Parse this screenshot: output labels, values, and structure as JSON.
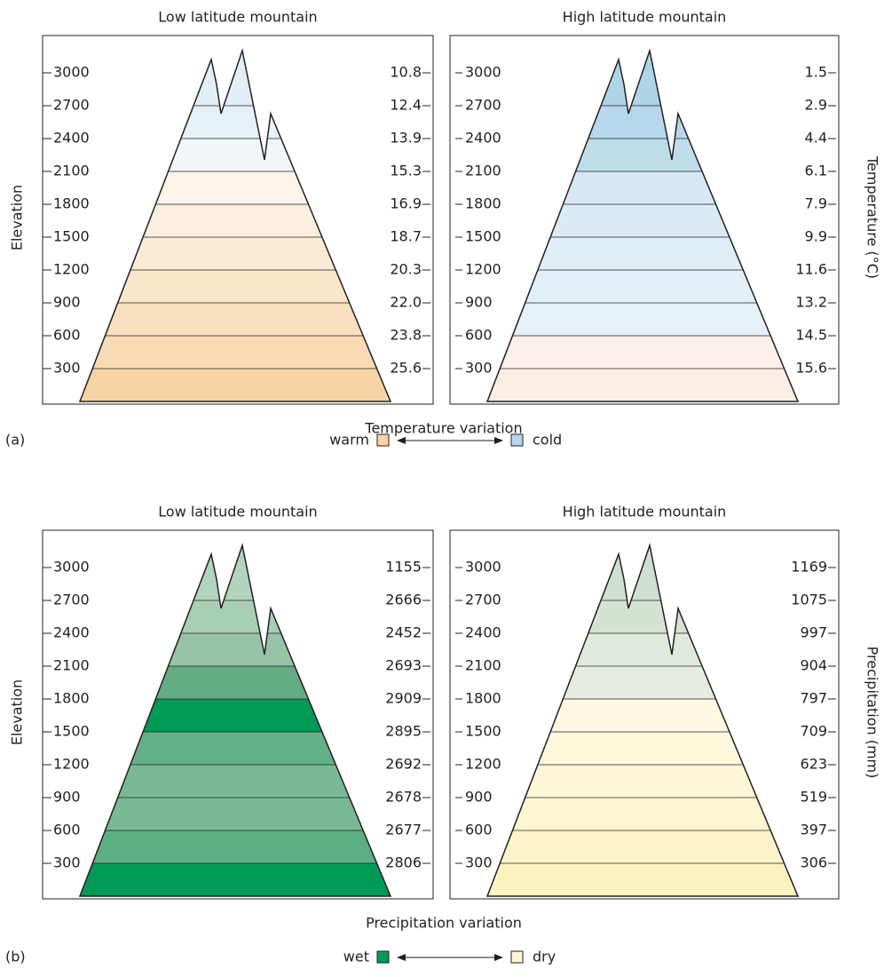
{
  "sections": [
    {
      "label": "(a)",
      "caption": "Temperature variation",
      "left_axis": "Elevation",
      "right_axis": "Temperature (°C)",
      "legend": {
        "left": "warm",
        "left_color": "#f6d4a4",
        "right": "cold",
        "right_color": "#b7d8ea"
      },
      "elevations": [
        300,
        600,
        900,
        1200,
        1500,
        1800,
        2100,
        2400,
        2700,
        3000
      ],
      "panels": [
        {
          "title": "Low latitude mountain",
          "values": [
            "25.6",
            "23.8",
            "22.0",
            "20.3",
            "18.7",
            "16.9",
            "15.3",
            "13.9",
            "12.4",
            "10.8"
          ],
          "band_colors": [
            "#f6d4a4",
            "#f8dbb4",
            "#f9e1c0",
            "#fae6ca",
            "#fbebd5",
            "#fcefdf",
            "#fdf4ea",
            "#f1f6fa",
            "#e6f0f7",
            "#e2eef6"
          ]
        },
        {
          "title": "High latitude mountain",
          "values": [
            "15.6",
            "14.5",
            "13.2",
            "11.6",
            "9.9",
            "7.9",
            "6.1",
            "4.4",
            "2.9",
            "1.5"
          ],
          "band_colors": [
            "#fbeee6",
            "#fbf0ea",
            "#e5f0f7",
            "#e3eff7",
            "#e0eef6",
            "#dbebf5",
            "#d5e8f3",
            "#bfdceb",
            "#b7d8ea",
            "#aed4e8"
          ]
        }
      ]
    },
    {
      "label": "(b)",
      "caption": "Precipitation variation",
      "left_axis": "Elevation",
      "right_axis": "Precipitation (mm)",
      "legend": {
        "left": "wet",
        "left_color": "#009a56",
        "right": "dry",
        "right_color": "#fdf6d2"
      },
      "elevations": [
        300,
        600,
        900,
        1200,
        1500,
        1800,
        2100,
        2400,
        2700,
        3000
      ],
      "panels": [
        {
          "title": "Low latitude mountain",
          "values": [
            "2806",
            "2677",
            "2678",
            "2692",
            "2895",
            "2909",
            "2693",
            "2452",
            "2666",
            "1155"
          ],
          "band_colors": [
            "#009a56",
            "#5bae82",
            "#7ab996",
            "#7ab996",
            "#64b088",
            "#009a56",
            "#64ac84",
            "#95c4a8",
            "#a8ceb4",
            "#b2d3bd"
          ]
        },
        {
          "title": "High latitude mountain",
          "values": [
            "306",
            "397",
            "519",
            "623",
            "709",
            "797",
            "904",
            "997",
            "1075",
            "1169"
          ],
          "band_colors": [
            "#fbf2c0",
            "#fcf4c8",
            "#fdf6d2",
            "#fdf7d7",
            "#fdf8dc",
            "#fef9e2",
            "#e4eddf",
            "#dfe9dc",
            "#d4e2d2",
            "#cfe0d2"
          ]
        }
      ]
    }
  ]
}
